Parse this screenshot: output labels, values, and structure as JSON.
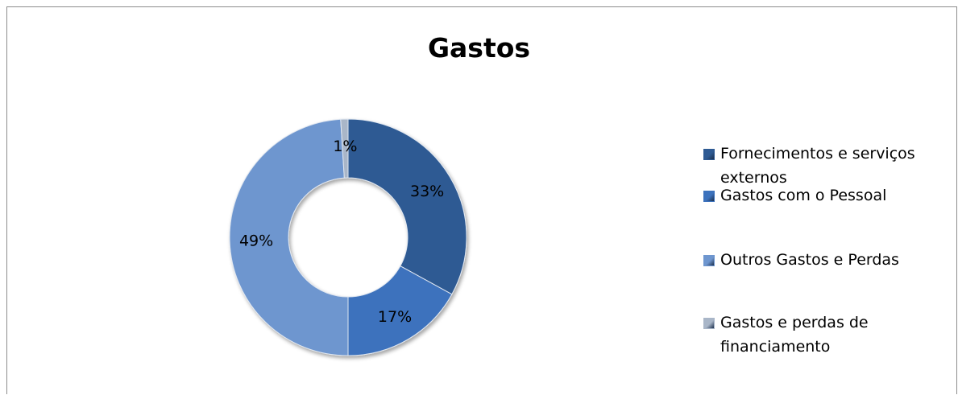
{
  "chart_data": {
    "type": "pie",
    "variant": "doughnut",
    "title": "Gastos",
    "series": [
      {
        "name": "Fornecimentos e serviços externos",
        "value": 33,
        "label": "33%",
        "color": "#2e5a93"
      },
      {
        "name": "Gastos com o Pessoal",
        "value": 17,
        "label": "17%",
        "color": "#3c72bd"
      },
      {
        "name": "Outros Gastos e Perdas",
        "value": 49,
        "label": "49%",
        "color": "#6e96cf"
      },
      {
        "name": "Gastos e perdas de financiamento",
        "value": 1,
        "label": "1%",
        "color": "#a9b6c8"
      }
    ],
    "legend_position": "right"
  },
  "legend_lines": [
    [
      "Fornecimentos e serviços",
      "externos"
    ],
    [
      "Gastos com o Pessoal"
    ],
    [
      "Outros Gastos e Perdas"
    ],
    [
      "Gastos e perdas de",
      "financiamento"
    ]
  ]
}
